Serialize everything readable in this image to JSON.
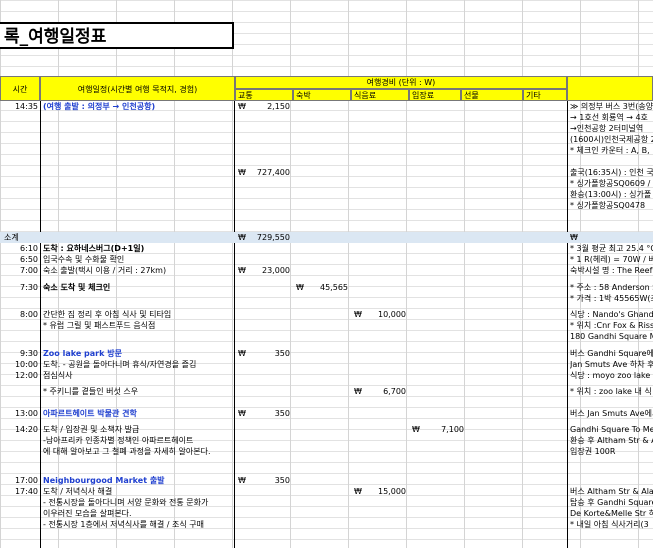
{
  "title": "록_여행일정표",
  "header": {
    "time": "시간",
    "itinerary": "여행일정(시간별 여행 목적지, 경험)",
    "expense_group": "여행경비 (단위 : W)",
    "cols": [
      "교통",
      "숙박",
      "식음료",
      "입장료",
      "선물",
      "기타"
    ]
  },
  "subtotal": {
    "label": "소계",
    "won": "₩",
    "amount": "729,550",
    "right_won": "₩"
  },
  "rows": [
    {
      "time": "14:35",
      "text": "(여행 출발 : 의정부 → 인천공항)",
      "style": "blue",
      "col": "교통",
      "amount": "2,150",
      "note": "≫ 의정부 버스 3번(송양"
    },
    {
      "time": "",
      "text": "",
      "style": "",
      "col": "",
      "amount": "",
      "note": "→ 1호선 회룡역 → 4호"
    },
    {
      "time": "",
      "text": "",
      "style": "",
      "col": "",
      "amount": "",
      "note": "→인천공항 2터미널역"
    },
    {
      "time": "",
      "text": "",
      "style": "",
      "col": "",
      "amount": "",
      "note": "(1600시)인천국제공항 2"
    },
    {
      "time": "",
      "text": "",
      "style": "",
      "col": "",
      "amount": "",
      "note": "* 체크인 카운터 : A, B,"
    },
    {
      "time": "",
      "text": "",
      "style": "",
      "col": "교통",
      "amount": "727,400",
      "note": "출국(16:35시) : 인천 국지"
    },
    {
      "time": "",
      "text": "",
      "style": "",
      "col": "",
      "amount": "",
      "note": "* 싱가폴항공SQ0609 / 2"
    },
    {
      "time": "",
      "text": "",
      "style": "",
      "col": "",
      "amount": "",
      "note": "환승(13:00시) : 싱가폴 -"
    },
    {
      "time": "",
      "text": "",
      "style": "",
      "col": "",
      "amount": "",
      "note": "* 싱가폴항공SQ0478"
    },
    {
      "time": "6:10",
      "text": "도착 : 요하네스버그(D+1일)",
      "style": "bold",
      "col": "",
      "amount": "",
      "note": "* 3월 평균 최고 25.4 °C"
    },
    {
      "time": "6:50",
      "text": "입국수속 및 수화물 확인",
      "style": "",
      "col": "",
      "amount": "",
      "note": "* 1 R(헤레) = 70W / 버스"
    },
    {
      "time": "7:00",
      "text": "숙소 출발(택시 이용 / 거리 : 27km)",
      "style": "",
      "col": "교통",
      "amount": "23,000",
      "note": "숙박시설 명 : The Reef"
    },
    {
      "time": "7:30",
      "text": "숙소 도착 및 체크인",
      "style": "bold",
      "col": "숙박",
      "amount": "45,565",
      "note": "* 주소 : 58 Anderson S"
    },
    {
      "time": "",
      "text": "",
      "style": "",
      "col": "",
      "amount": "",
      "note": "* 가격 : 1박 45565W(조"
    },
    {
      "time": "8:00",
      "text": "간단한 짐 정리 후 아침 식사 및 티타임",
      "style": "",
      "col": "식음료",
      "amount": "10,000",
      "note": "식당 : Nando's Ghandi"
    },
    {
      "time": "",
      "text": "* 유럽 그릴 및 패스트푸드 음식점",
      "style": "",
      "col": "",
      "amount": "",
      "note": "* 위치 :Cnr Fox & Rissi"
    },
    {
      "time": "",
      "text": "",
      "style": "",
      "col": "",
      "amount": "",
      "note": "180 Gandhi Square M"
    },
    {
      "time": "9:30",
      "text": "Zoo lake park 방문",
      "style": "blue",
      "col": "교통",
      "amount": "350",
      "note": "버스 Gandhi Square에서"
    },
    {
      "time": "10:00",
      "text": "도착.  - 공원을 돌아다니며 휴식/자연경을 즐김",
      "style": "",
      "col": "",
      "amount": "",
      "note": "Jan Smuts Ave 하차 후"
    },
    {
      "time": "12:00",
      "text": "점심식사",
      "style": "",
      "col": "",
      "amount": "",
      "note": "식당 : moyo zoo lake"
    },
    {
      "time": "",
      "text": "* 주키니를 곁들인 버섯 스우",
      "style": "",
      "col": "식음료",
      "amount": "6,700",
      "note": "* 위치 : zoo lake 내 식"
    },
    {
      "time": "",
      "text": "",
      "style": "",
      "col": "",
      "amount": "",
      "note": ""
    },
    {
      "time": "13:00",
      "text": "아파르트헤이트 박물관 견학",
      "style": "blue",
      "col": "교통",
      "amount": "350",
      "note": "버스 Jan Smuts Ave에서"
    },
    {
      "time": "14:20",
      "text": "도착 / 입장권 및 소책자 발급",
      "style": "",
      "col": "입장료",
      "amount": "7,100",
      "note": "Gandhi Square To Mer"
    },
    {
      "time": "",
      "text": "-남아프리카 인종차별 정책인 아파르트헤이트",
      "style": "",
      "col": "",
      "amount": "",
      "note": "환승 후 Altham Str & A"
    },
    {
      "time": "",
      "text": "에 대해 알아보고 그 철폐 과정을 자세히 알아본다.",
      "style": "",
      "col": "",
      "amount": "",
      "note": "입장권 100R"
    },
    {
      "time": "",
      "text": "",
      "style": "",
      "col": "",
      "amount": "",
      "note": ""
    },
    {
      "time": "17:00",
      "text": "Neighbourgood Market 출발",
      "style": "blue",
      "col": "교통",
      "amount": "350",
      "note": ""
    },
    {
      "time": "17:40",
      "text": "도착 / 저녁식사 해결",
      "style": "",
      "col": "식음료",
      "amount": "15,000",
      "note": "버스 Altham Str & Ala"
    },
    {
      "time": "",
      "text": "- 전통시장을 돌아다니며 서양 문화와 전통 문화가",
      "style": "",
      "col": "",
      "amount": "",
      "note": "탑승 후 Gandhi Square"
    },
    {
      "time": "",
      "text": "이우러진 모습을 살펴본다.",
      "style": "",
      "col": "",
      "amount": "",
      "note": "De Korte&Melle Str 하"
    },
    {
      "time": "",
      "text": "- 전통시장 1층에서 저녁식사를 해결 / 조식 구매",
      "style": "",
      "col": "",
      "amount": "",
      "note": "* 내일 아침 식사거리(3"
    }
  ]
}
